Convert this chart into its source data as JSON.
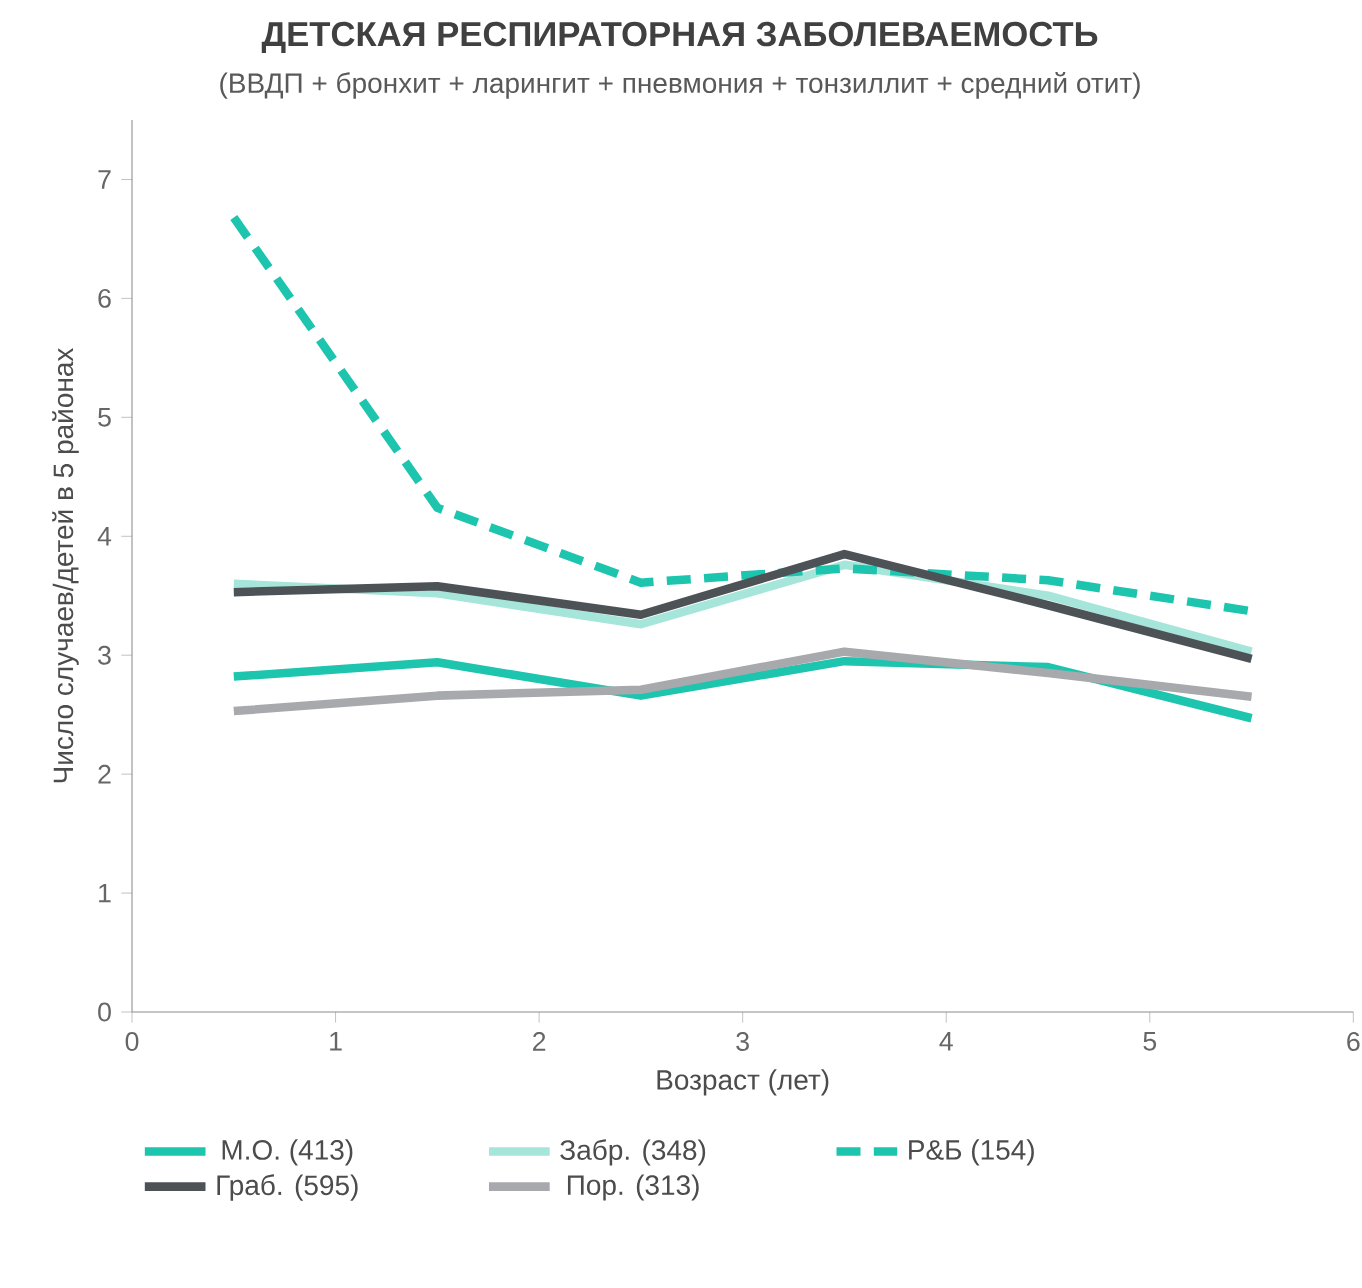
{
  "chart_data": {
    "type": "line",
    "title": "ДЕТСКАЯ РЕСПИРАТОРНАЯ ЗАБОЛЕВАЕМОСТЬ",
    "subtitle": "(ВВДП + бронхит + ларингит + пневмония + тонзиллит + средний отит)",
    "xlabel": "Возраст (лет)",
    "ylabel": "Число случаев/детей в 5 районах",
    "x": [
      0.5,
      1.5,
      2.5,
      3.5,
      4.5,
      5.5
    ],
    "series": [
      {
        "name": "М.О. (413)",
        "color": "#1dc4ae",
        "values": [
          2.82,
          2.94,
          2.66,
          2.95,
          2.9,
          2.47
        ]
      },
      {
        "name": "Забр. (348)",
        "color": "#a6e5da",
        "values": [
          3.6,
          3.52,
          3.26,
          3.76,
          3.5,
          3.03
        ]
      },
      {
        "name": "Р&Б (154)",
        "color": "#1dc4ae",
        "line_style": "dashed",
        "values": [
          6.68,
          4.24,
          3.61,
          3.73,
          3.63,
          3.37
        ]
      },
      {
        "name": "Граб. (595)",
        "color": "#4d5257",
        "values": [
          3.53,
          3.58,
          3.34,
          3.85,
          3.42,
          2.97
        ]
      },
      {
        "name": "Пор. (313)",
        "color": "#a7a9ac",
        "values": [
          2.53,
          2.66,
          2.71,
          3.03,
          2.85,
          2.65
        ]
      }
    ],
    "xlim": [
      0,
      6
    ],
    "ylim": [
      0,
      7.5
    ],
    "xticks": [
      0,
      1,
      2,
      3,
      4,
      5,
      6
    ],
    "yticks": [
      0,
      1,
      2,
      3,
      4,
      5,
      6,
      7
    ],
    "grid": false,
    "legend": "bottom",
    "marker": "none",
    "line_style": "solid"
  }
}
